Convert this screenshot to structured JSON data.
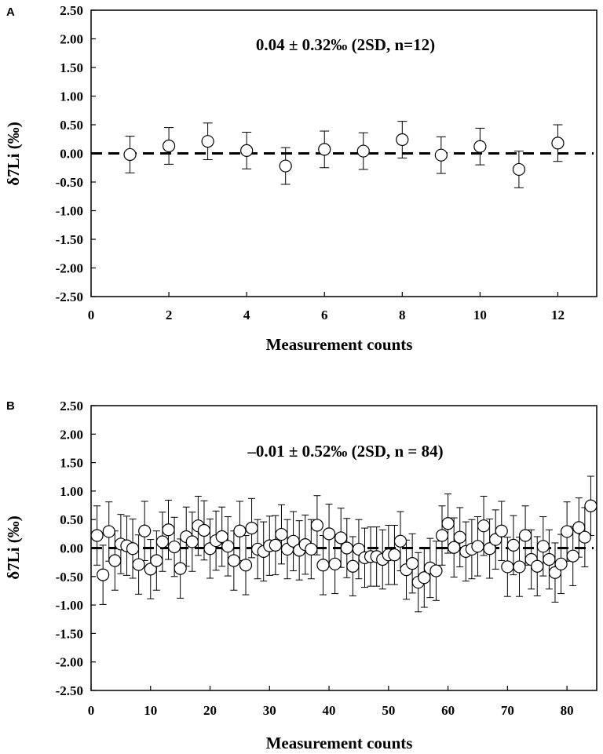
{
  "chart_data": [
    {
      "panel": "A",
      "type": "scatter",
      "annotation": "0.04 ± 0.32‰ (2SD, n=12)",
      "xlabel": "Measurement counts",
      "ylabel": "δ7Li (‰)",
      "xlim": [
        0,
        13
      ],
      "ylim": [
        -2.5,
        2.5
      ],
      "xticks": [
        "0",
        "2",
        "4",
        "6",
        "8",
        "10",
        "12"
      ],
      "xtick_values": [
        0,
        2,
        4,
        6,
        8,
        10,
        12
      ],
      "yticks": [
        "2.50",
        "2.00",
        "1.50",
        "1.00",
        "0.50",
        "0.00",
        "-0.50",
        "-1.00",
        "-1.50",
        "-2.00",
        "-2.50"
      ],
      "ytick_values": [
        2.5,
        2.0,
        1.5,
        1.0,
        0.5,
        0.0,
        -0.5,
        -1.0,
        -1.5,
        -2.0,
        -2.5
      ],
      "reference_line": 0,
      "error": 0.32,
      "x": [
        1,
        2,
        3,
        4,
        5,
        6,
        7,
        8,
        9,
        10,
        11,
        12
      ],
      "y": [
        -0.02,
        0.13,
        0.21,
        0.05,
        -0.22,
        0.07,
        0.04,
        0.24,
        -0.03,
        0.12,
        -0.28,
        0.18
      ],
      "grid": false
    },
    {
      "panel": "B",
      "type": "scatter",
      "annotation": "–0.01 ± 0.52‰ (2SD, n = 84)",
      "xlabel": "Measurement counts",
      "ylabel": "δ7Li (‰)",
      "xlim": [
        0,
        85
      ],
      "ylim": [
        -2.5,
        2.5
      ],
      "xticks": [
        "0",
        "10",
        "20",
        "30",
        "40",
        "50",
        "60",
        "70",
        "80"
      ],
      "xtick_values": [
        0,
        10,
        20,
        30,
        40,
        50,
        60,
        70,
        80
      ],
      "yticks": [
        "2.50",
        "2.00",
        "1.50",
        "1.00",
        "0.50",
        "0.00",
        "-0.50",
        "-1.00",
        "-1.50",
        "-2.00",
        "-2.50"
      ],
      "ytick_values": [
        2.5,
        2.0,
        1.5,
        1.0,
        0.5,
        0.0,
        -0.5,
        -1.0,
        -1.5,
        -2.0,
        -2.5
      ],
      "reference_line": 0,
      "error": 0.52,
      "x": [
        1,
        2,
        3,
        4,
        5,
        6,
        7,
        8,
        9,
        10,
        11,
        12,
        13,
        14,
        15,
        16,
        17,
        18,
        19,
        20,
        21,
        22,
        23,
        24,
        25,
        26,
        27,
        28,
        29,
        30,
        31,
        32,
        33,
        34,
        35,
        36,
        37,
        38,
        39,
        40,
        41,
        42,
        43,
        44,
        45,
        46,
        47,
        48,
        49,
        50,
        51,
        52,
        53,
        54,
        55,
        56,
        57,
        58,
        59,
        60,
        61,
        62,
        63,
        64,
        65,
        66,
        67,
        68,
        69,
        70,
        71,
        72,
        73,
        74,
        75,
        76,
        77,
        78,
        79,
        80,
        81,
        82,
        83,
        84
      ],
      "y": [
        0.22,
        -0.47,
        0.29,
        -0.22,
        0.07,
        0.04,
        -0.01,
        -0.29,
        0.3,
        -0.37,
        -0.22,
        0.11,
        0.32,
        0.02,
        -0.36,
        0.2,
        0.11,
        0.39,
        0.31,
        -0.01,
        0.13,
        0.2,
        0.03,
        -0.22,
        0.3,
        -0.3,
        0.35,
        -0.02,
        -0.06,
        0.04,
        0.05,
        0.24,
        -0.02,
        0.12,
        -0.04,
        0.06,
        -0.02,
        0.4,
        -0.3,
        0.25,
        -0.28,
        0.18,
        0.0,
        -0.32,
        -0.02,
        -0.17,
        -0.15,
        -0.15,
        -0.2,
        -0.12,
        -0.12,
        0.12,
        -0.38,
        -0.27,
        -0.6,
        -0.52,
        -0.35,
        -0.4,
        0.22,
        0.43,
        0.01,
        0.19,
        -0.06,
        -0.02,
        0.03,
        0.39,
        -0.01,
        0.15,
        0.3,
        -0.33,
        0.05,
        -0.33,
        0.22,
        -0.2,
        -0.32,
        0.03,
        -0.2,
        -0.43,
        -0.28,
        0.29,
        -0.14,
        0.36,
        0.19,
        0.74
      ],
      "grid": false
    }
  ]
}
